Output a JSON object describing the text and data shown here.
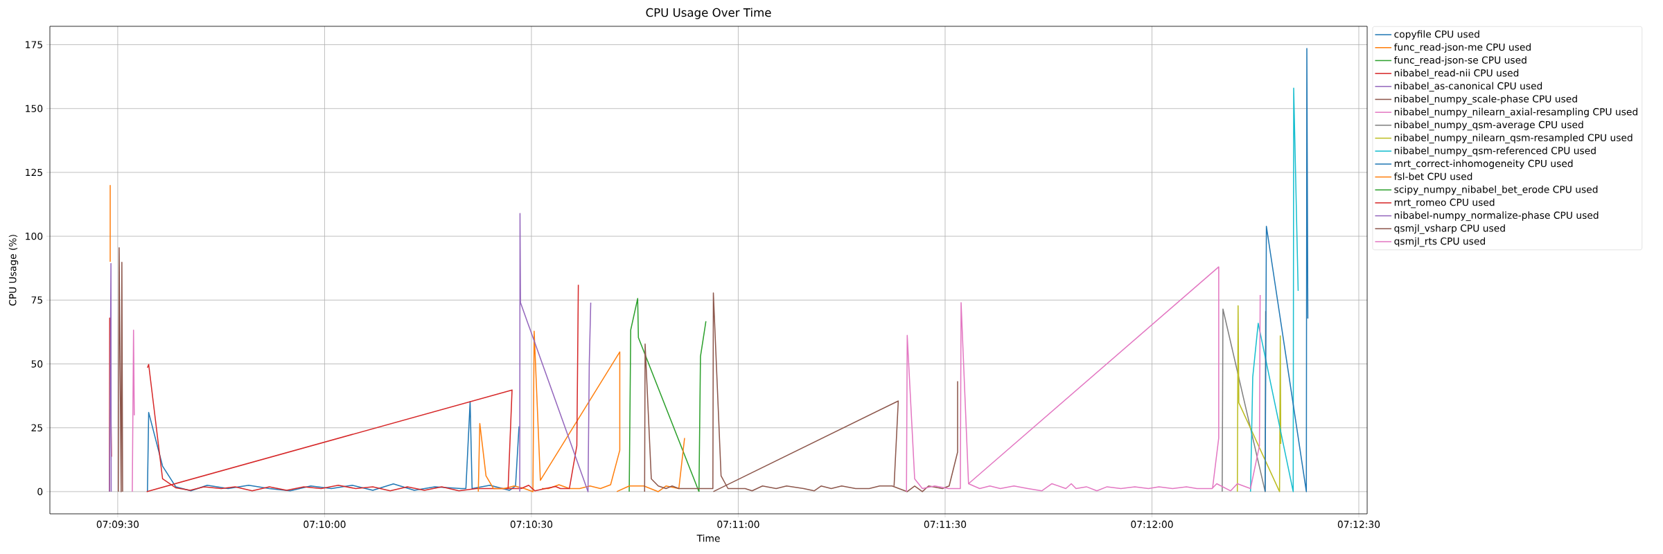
{
  "chart_data": {
    "type": "line",
    "title": "CPU Usage Over Time",
    "xlabel": "Time",
    "ylabel": "CPU Usage (%)",
    "xlim": [
      7.1556,
      7.20867
    ],
    "ylim": [
      -8.7,
      182.2
    ],
    "xticks": [
      {
        "value": 7.158333,
        "label": "07:09:30"
      },
      {
        "value": 7.166667,
        "label": "07:10:00"
      },
      {
        "value": 7.175,
        "label": "07:10:30"
      },
      {
        "value": 7.183333,
        "label": "07:11:00"
      },
      {
        "value": 7.191667,
        "label": "07:11:30"
      },
      {
        "value": 7.2,
        "label": "07:12:00"
      },
      {
        "value": 7.208333,
        "label": "07:12:30"
      }
    ],
    "yticks": [
      0,
      25,
      50,
      75,
      100,
      125,
      150,
      175
    ],
    "grid": true,
    "legend": "right",
    "series": [
      {
        "name": "copyfile CPU used",
        "color": "#1f77b4",
        "x": [
          7.15953,
          7.15958,
          7.16014,
          7.16067,
          7.16128,
          7.16194,
          7.16278,
          7.16361,
          7.16444,
          7.16528,
          7.16611,
          7.16694,
          7.16778,
          7.16861,
          7.16944,
          7.17028,
          7.17111,
          7.17217,
          7.17236,
          7.17253,
          7.17261,
          7.17333,
          7.17411,
          7.17436,
          7.1745
        ],
        "values": [
          0,
          31,
          10,
          1.9,
          0.3,
          2.5,
          1.2,
          2.5,
          1.2,
          0.3,
          2.2,
          1.2,
          2.5,
          0.5,
          3,
          0.5,
          1.9,
          1.2,
          1.2,
          35.2,
          1.2,
          2.5,
          0.5,
          2.2,
          25.5
        ]
      },
      {
        "name": "func_read-json-me CPU used",
        "color": "#ff7f0e",
        "x": [
          7.15803,
          7.15803
        ],
        "values": [
          120,
          90
        ]
      },
      {
        "name": "func_read-json-se CPU used",
        "color": "#2ca02c",
        "x": [
          7.17894,
          7.179,
          7.17928,
          7.17931,
          7.18175
        ],
        "values": [
          0,
          63.3,
          75.6,
          60.3,
          0
        ]
      },
      {
        "name": "nibabel_read-nii CPU used",
        "color": "#d62728",
        "x": [
          7.158,
          7.15801,
          7.15808,
          7.15861,
          7.15953,
          7.15958,
          7.16014,
          7.16067,
          7.16125,
          7.16181,
          7.1625,
          7.16306,
          7.16375,
          7.16444,
          7.16514,
          7.16583,
          7.16653,
          7.16722,
          7.16792,
          7.16861,
          7.16931,
          7.17,
          7.17069,
          7.17139,
          7.17208,
          7.17278,
          7.17347,
          7.17406
        ],
        "values": [
          0,
          68,
          13.7,
          null,
          48.5,
          49.8,
          5,
          1.5,
          0.5,
          1.9,
          1.2,
          1.9,
          0.3,
          1.9,
          0.5,
          1.9,
          1.2,
          2.5,
          1.2,
          1.9,
          0.3,
          1.9,
          0.5,
          1.9,
          0.3,
          1.2,
          1.2,
          1.2
        ]
      },
      {
        "name": "nibabel_as-canonical CPU used",
        "color": "#9467bd",
        "x": [
          7.158,
          7.15806,
          7.15807
        ],
        "values": [
          0,
          89.3,
          0
        ]
      },
      {
        "name": "nibabel_numpy_scale-phase CPU used",
        "color": "#8c564b",
        "x": [
          7.15836,
          7.15839,
          7.15847,
          7.1585,
          7.15853
        ],
        "values": [
          0,
          95.5,
          0,
          89.8,
          0
        ]
      },
      {
        "name": "nibabel_numpy_nilearn_axial-resampling CPU used",
        "color": "#e377c2",
        "x": [
          7.15892,
          7.15897,
          7.159
        ],
        "values": [
          0,
          63.2,
          29.9
        ]
      },
      {
        "name": "nibabel_numpy_qsm-average CPU used",
        "color": "#7f7f7f",
        "x": [
          7.20283,
          7.20286,
          7.20456,
          7.20458
        ],
        "values": [
          0,
          71.5,
          0,
          70.7
        ]
      },
      {
        "name": "nibabel_numpy_nilearn_qsm-resampled CPU used",
        "color": "#bcbd22",
        "x": [
          7.20344,
          7.20347,
          7.2035,
          7.20514,
          7.20517,
          7.20519
        ],
        "values": [
          0,
          72.8,
          34.8,
          0,
          61,
          18.7
        ]
      },
      {
        "name": "nibabel_numpy_qsm-referenced CPU used",
        "color": "#17becf",
        "x": [
          7.20397,
          7.20406,
          7.20428,
          7.20569,
          7.20571,
          7.20589
        ],
        "values": [
          0,
          44.8,
          65.9,
          0,
          158,
          78.6
        ]
      },
      {
        "name": "mrt_correct-inhomogeneity CPU used",
        "color": "#1f77b4",
        "x": [
          7.20456,
          7.20461,
          7.20622,
          7.20624,
          7.20628
        ],
        "values": [
          0,
          103.9,
          0,
          173.5,
          67.8
        ]
      },
      {
        "name": "fsl-bet CPU used",
        "color": "#ff7f0e",
        "x": [
          7.17286,
          7.17292,
          7.17317,
          7.17347,
          7.17389,
          7.17431,
          7.17472,
          7.17506,
          7.17511,
          7.17536,
          7.17856,
          7.17856,
          7.17819,
          7.17778,
          7.17736,
          7.17694,
          7.17653,
          7.17611,
          7.17569,
          7.17542,
          7.17694,
          7.17844,
          7.17894,
          7.17953,
          7.18011,
          7.18042,
          7.18094,
          7.18117
        ],
        "values": [
          0,
          26.7,
          6.2,
          1.2,
          1.2,
          2.2,
          1.2,
          0,
          62.8,
          4.4,
          54.7,
          16.2,
          2.7,
          1.2,
          2.2,
          1.2,
          1.2,
          2.7,
          1.2,
          1.2,
          null,
          0,
          2.2,
          2.2,
          0,
          2.2,
          1.2,
          21
        ]
      },
      {
        "name": "scipy_numpy_nibabel_bet_erode CPU used",
        "color": "#2ca02c",
        "x": [
          7.18175,
          7.18181,
          7.18203
        ],
        "values": [
          0,
          52.9,
          66.7
        ]
      },
      {
        "name": "mrt_romeo CPU used",
        "color": "#d62728",
        "x": [
          7.1595,
          7.17422,
          7.17406,
          7.17458,
          7.17489,
          7.17514,
          7.17556,
          7.17597,
          7.17617,
          7.17653,
          7.17683,
          7.17689
        ],
        "values": [
          0,
          39.8,
          1.2,
          1.2,
          2.5,
          0.3,
          1.2,
          2,
          1.2,
          1.2,
          18,
          81
        ]
      },
      {
        "name": "nibabel-numpy_normalize-phase CPU used",
        "color": "#9467bd",
        "x": [
          7.17453,
          7.17454,
          7.17456,
          7.17728,
          7.17733,
          7.17739
        ],
        "values": [
          0,
          108.9,
          74,
          0,
          50,
          74
        ]
      },
      {
        "name": "qsmjl_vsharp CPU used",
        "color": "#8c564b",
        "x": [
          7.17956,
          7.17958,
          7.17983,
          7.18011,
          7.18042,
          7.18067,
          7.18094,
          7.18231,
          7.18233,
          7.18264,
          7.18292,
          7.18361,
          7.18389,
          7.18431,
          7.18486,
          7.18528,
          7.18597,
          7.18639,
          7.18667,
          7.18708,
          7.1875,
          7.18806,
          7.18861,
          7.18903,
          7.18953,
          7.19014,
          7.19044,
          7.19075,
          7.191,
          7.19156,
          7.19183,
          7.19217,
          7.19217,
          7.18611,
          7.18233,
          7.18978,
          7.18961
        ],
        "values": [
          0,
          57.8,
          5,
          2.2,
          1.2,
          2.2,
          1.2,
          1.2,
          77.8,
          6.2,
          1.2,
          1.2,
          0.3,
          2.2,
          1.2,
          2.2,
          1.2,
          0.3,
          2.2,
          1.2,
          2.2,
          1.2,
          1.2,
          2.2,
          2.2,
          0,
          2.2,
          0,
          2.2,
          1.2,
          2.2,
          15.5,
          43.2,
          null,
          0,
          35.5,
          2.2
        ]
      },
      {
        "name": "qsmjl_rts CPU used",
        "color": "#e377c2",
        "x": [
          7.19011,
          7.19014,
          7.19044,
          7.19075,
          7.19125,
          7.19181,
          7.19228,
          7.19231,
          7.19261,
          7.19306,
          7.19347,
          7.19389,
          7.19444,
          7.195,
          7.19556,
          7.19597,
          7.19653,
          7.19675,
          7.19694,
          7.19736,
          7.19778,
          7.19819,
          7.19875,
          7.19931,
          7.19986,
          7.20028,
          7.20083,
          7.20139,
          7.20181,
          7.20242,
          7.20261,
          7.20317,
          7.20344,
          7.20397,
          7.20433,
          7.20436,
          7.19722,
          7.19261,
          7.20269,
          7.20269,
          7.20244
        ],
        "values": [
          0,
          61.2,
          5,
          1.2,
          2.2,
          1.2,
          1.2,
          74,
          3.1,
          1.2,
          2.2,
          1.2,
          2.2,
          1.2,
          0.3,
          3.1,
          1.2,
          3.1,
          1.2,
          1.9,
          0.3,
          1.9,
          1.2,
          1.9,
          1.2,
          1.9,
          1.2,
          1.9,
          1.2,
          1.2,
          3.1,
          0.3,
          3.1,
          1.2,
          18,
          77,
          null,
          3.1,
          88,
          21,
          1.2
        ]
      }
    ]
  }
}
